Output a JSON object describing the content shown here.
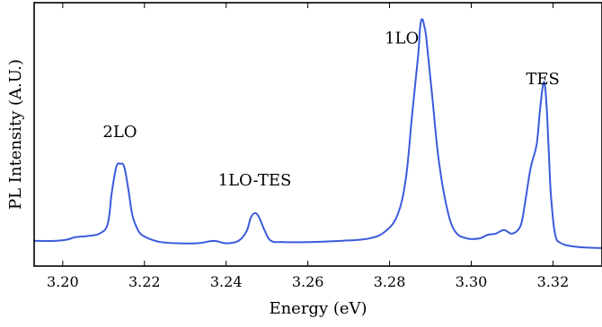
{
  "chart_data": {
    "type": "line",
    "title": "",
    "xlabel": "Energy (eV)",
    "ylabel": "PL Intensity (A.U.)",
    "xlim": [
      3.193,
      3.332
    ],
    "ylim": [
      0,
      1.0
    ],
    "x_ticks": [
      3.2,
      3.22,
      3.24,
      3.26,
      3.28,
      3.3,
      3.32
    ],
    "x_tick_labels": [
      "3.20",
      "3.22",
      "3.24",
      "3.26",
      "3.28",
      "3.30",
      "3.32"
    ],
    "y_ticks_shown": false,
    "grid": false,
    "legend": "none",
    "line_color": "#3b5bdb",
    "series": [
      {
        "x": [
          3.193,
          3.198,
          3.201,
          3.203,
          3.206,
          3.209,
          3.211,
          3.212,
          3.213,
          3.2135,
          3.214,
          3.215,
          3.216,
          3.217,
          3.218,
          3.219,
          3.221,
          3.224,
          3.228,
          3.233,
          3.237,
          3.24,
          3.243,
          3.245,
          3.246,
          3.247,
          3.248,
          3.2495,
          3.251,
          3.254,
          3.26,
          3.268,
          3.275,
          3.279,
          3.282,
          3.284,
          3.2855,
          3.287,
          3.2875,
          3.288,
          3.2885,
          3.289,
          3.2905,
          3.292,
          3.294,
          3.296,
          3.299,
          3.302,
          3.304,
          3.306,
          3.308,
          3.31,
          3.312,
          3.313,
          3.3145,
          3.316,
          3.3168,
          3.3175,
          3.318,
          3.3185,
          3.319,
          3.3195,
          3.3205,
          3.322,
          3.326,
          3.332
        ],
        "y": [
          0.06,
          0.06,
          0.065,
          0.075,
          0.08,
          0.09,
          0.13,
          0.26,
          0.36,
          0.38,
          0.38,
          0.37,
          0.28,
          0.17,
          0.12,
          0.09,
          0.07,
          0.055,
          0.05,
          0.05,
          0.06,
          0.05,
          0.06,
          0.1,
          0.155,
          0.175,
          0.16,
          0.1,
          0.06,
          0.055,
          0.055,
          0.06,
          0.07,
          0.1,
          0.17,
          0.32,
          0.58,
          0.83,
          0.95,
          0.98,
          0.95,
          0.9,
          0.65,
          0.4,
          0.2,
          0.1,
          0.07,
          0.07,
          0.085,
          0.09,
          0.105,
          0.09,
          0.12,
          0.2,
          0.36,
          0.46,
          0.6,
          0.7,
          0.71,
          0.6,
          0.42,
          0.25,
          0.09,
          0.05,
          0.035,
          0.03
        ]
      }
    ],
    "annotations": [
      {
        "text": "2LO",
        "x": 3.214,
        "y": 0.49
      },
      {
        "text": "1LO-TES",
        "x": 3.247,
        "y": 0.29
      },
      {
        "text": "1LO",
        "x": 3.283,
        "y": 0.88
      },
      {
        "text": "TES",
        "x": 3.3175,
        "y": 0.71
      }
    ]
  }
}
